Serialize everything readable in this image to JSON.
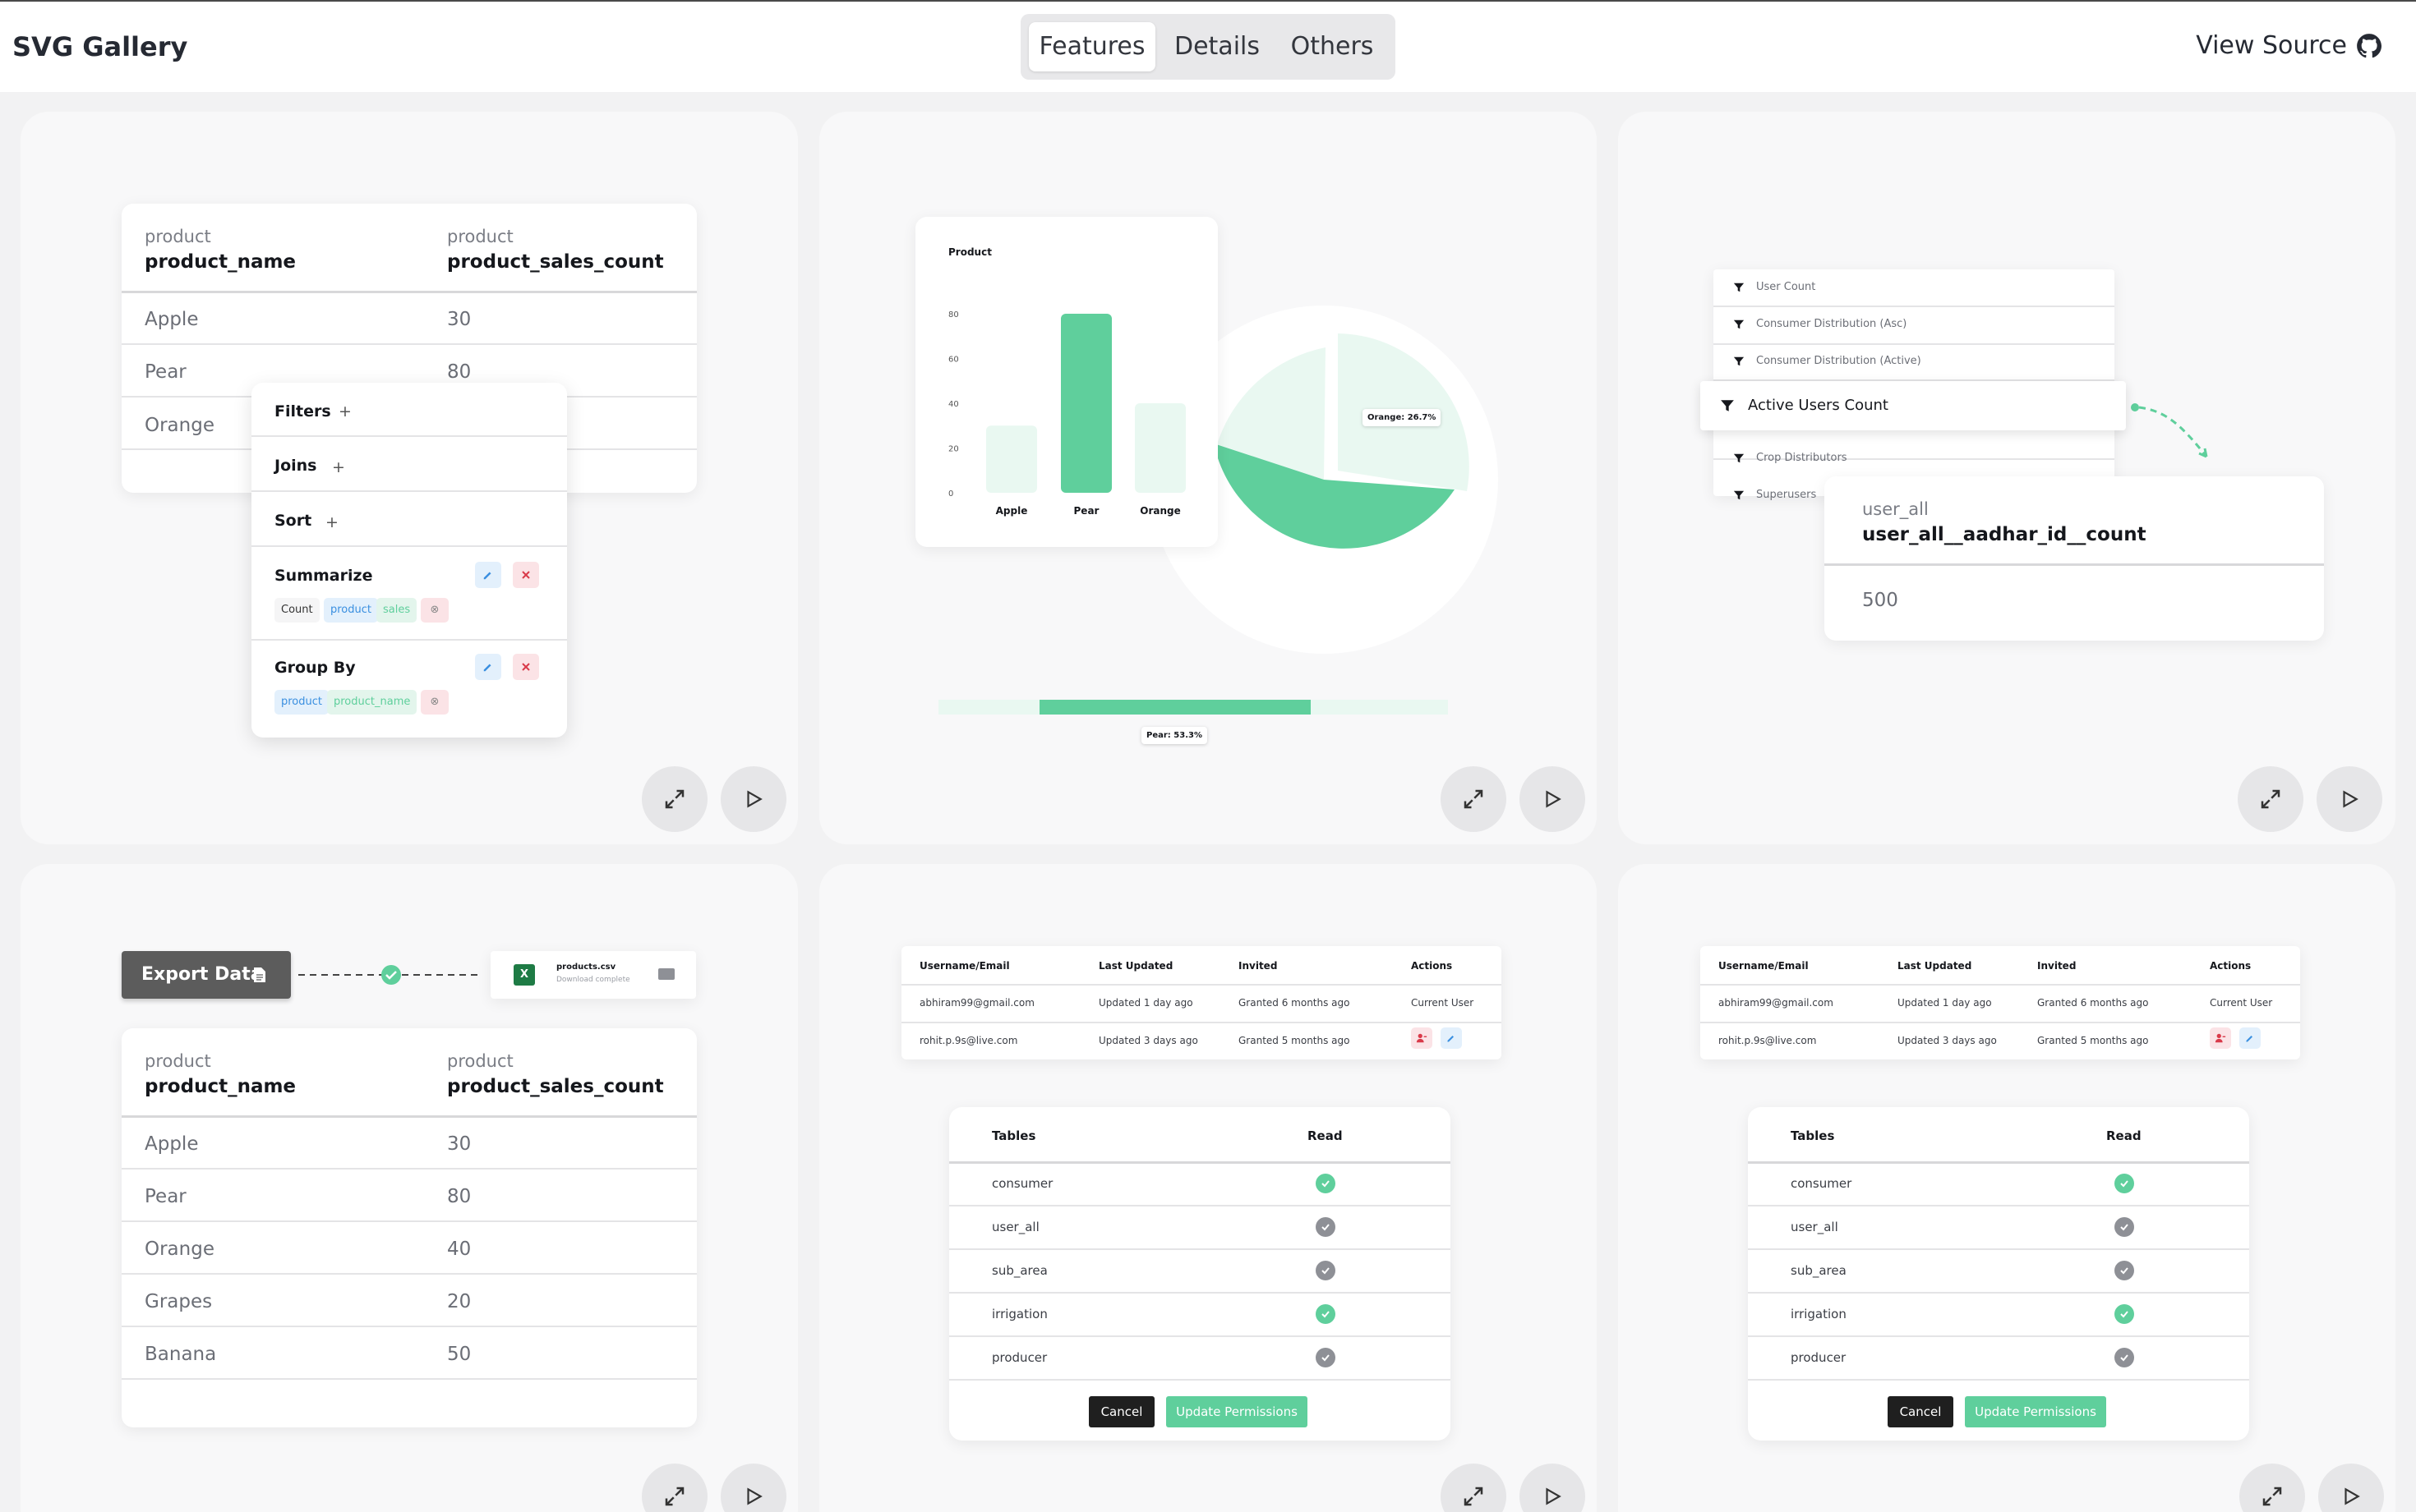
{
  "header": {
    "brand": "SVG Gallery",
    "tabs": [
      "Features",
      "Details",
      "Others"
    ],
    "active_tab": "Features",
    "view_source": "View Source"
  },
  "colors": {
    "accent": "#5fcf9c",
    "accent_light": "#e9f8f1",
    "dark": "#1f1f1f",
    "red": "#d93a4a",
    "blue": "#3a8fe0"
  },
  "card1": {
    "table": {
      "headers": [
        {
          "sub": "product",
          "name": "product_name"
        },
        {
          "sub": "product",
          "name": "product_sales_count"
        }
      ],
      "rows": [
        [
          "Apple",
          "30"
        ],
        [
          "Pear",
          "80"
        ],
        [
          "Orange",
          ""
        ]
      ]
    },
    "query": {
      "filters": "Filters",
      "joins": "Joins",
      "sort": "Sort",
      "plus": "+",
      "summarize": "Summarize",
      "summarize_chip": {
        "fn": "Count",
        "table": "product",
        "column": "sales"
      },
      "group_by": "Group By",
      "group_chip": {
        "table": "product",
        "column": "product_name"
      }
    }
  },
  "card2": {
    "chart_data": {
      "type": "bar",
      "title": "Product",
      "categories": [
        "Apple",
        "Pear",
        "Orange"
      ],
      "values": [
        30,
        80,
        40
      ],
      "ylim": [
        0,
        80
      ],
      "yticks": [
        "80",
        "60",
        "40",
        "20",
        "0"
      ]
    },
    "pie_tooltip": "Orange: 26.7%",
    "bar_tooltip": "Pear: 53.3%"
  },
  "card3": {
    "list": [
      "User Count",
      "Consumer Distribution (Asc)",
      "Consumer Distribution (Active)",
      "Active Users Count",
      "Crop Distributors",
      "Superusers"
    ],
    "selected": "Active Users Count",
    "result": {
      "sub": "user_all",
      "name": "user_all__aadhar_id__count",
      "value": "500"
    }
  },
  "card4": {
    "export_label": "Export Data",
    "file_name": "products.csv",
    "file_status": "Download complete",
    "table": {
      "headers": [
        {
          "sub": "product",
          "name": "product_name"
        },
        {
          "sub": "product",
          "name": "product_sales_count"
        }
      ],
      "rows": [
        [
          "Apple",
          "30"
        ],
        [
          "Pear",
          "80"
        ],
        [
          "Orange",
          "40"
        ],
        [
          "Grapes",
          "20"
        ],
        [
          "Banana",
          "50"
        ]
      ]
    }
  },
  "users_table": {
    "headers": [
      "Username/Email",
      "Last Updated",
      "Invited",
      "Actions"
    ],
    "rows": [
      [
        "abhiram99@gmail.com",
        "Updated 1 day ago",
        "Granted 6 months ago",
        "Current User"
      ],
      [
        "rohit.p.9s@live.com",
        "Updated 3 days ago",
        "Granted 5 months ago",
        ""
      ]
    ]
  },
  "perms": {
    "headers": [
      "Tables",
      "Read"
    ],
    "rows": [
      {
        "name": "consumer",
        "read": true
      },
      {
        "name": "user_all",
        "read": false
      },
      {
        "name": "sub_area",
        "read": false
      },
      {
        "name": "irrigation",
        "read": true
      },
      {
        "name": "producer",
        "read": false
      }
    ],
    "cancel": "Cancel",
    "update": "Update Permissions"
  }
}
